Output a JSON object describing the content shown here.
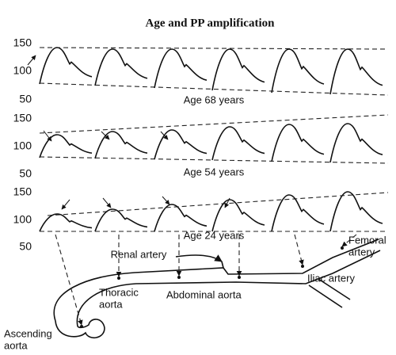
{
  "title": "Age and PP amplification",
  "panels": [
    {
      "label": "Age 68 years",
      "yticks": [
        150,
        100,
        50
      ]
    },
    {
      "label": "Age 54 years",
      "yticks": [
        150,
        100,
        50
      ]
    },
    {
      "label": "Age 24 years",
      "yticks": [
        150,
        100,
        50
      ]
    }
  ],
  "anatomy": [
    {
      "lines": [
        "Renal artery"
      ]
    },
    {
      "lines": [
        "Thoracic",
        "aorta"
      ]
    },
    {
      "lines": [
        "Abdominal aorta"
      ]
    },
    {
      "lines": [
        "Iliac artery"
      ]
    },
    {
      "lines": [
        "Femoral",
        "artery"
      ]
    },
    {
      "lines": [
        "Ascending",
        "aorta"
      ]
    }
  ]
}
